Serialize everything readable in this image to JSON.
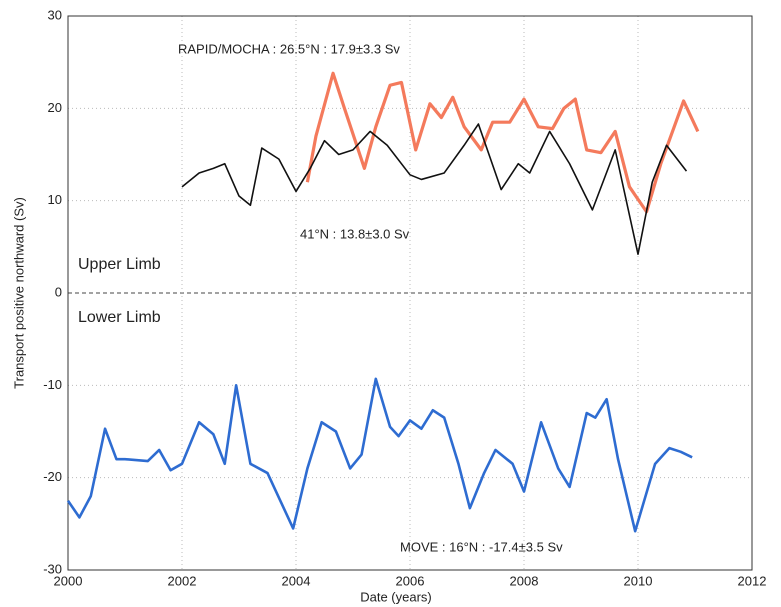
{
  "chart_data": {
    "type": "line",
    "x_label": "Date (years)",
    "y_label": "Transport positive northward (Sv)",
    "xlim": [
      2000,
      2012
    ],
    "xticks": [
      2000,
      2002,
      2004,
      2006,
      2008,
      2010,
      2012
    ],
    "ylim": [
      -30,
      30
    ],
    "yticks": [
      -30,
      -20,
      -10,
      0,
      10,
      20,
      30
    ],
    "grid": true,
    "annotations": [
      "Upper Limb",
      "Lower Limb"
    ],
    "series": [
      {
        "name": "RAPID/MOCHA : 26.5°N : 17.9±3.3 Sv",
        "color": "#f47a5c",
        "x": [
          2004.2,
          2004.35,
          2004.65,
          2004.85,
          2005.2,
          2005.4,
          2005.65,
          2005.85,
          2006.1,
          2006.35,
          2006.55,
          2006.75,
          2006.95,
          2007.25,
          2007.45,
          2007.75,
          2008.0,
          2008.25,
          2008.5,
          2008.7,
          2008.9,
          2009.1,
          2009.35,
          2009.6,
          2009.85,
          2010.15,
          2010.4,
          2010.8,
          2011.05
        ],
        "values": [
          12,
          17,
          23.8,
          20,
          13.5,
          18,
          22.5,
          22.8,
          15.5,
          20.5,
          19,
          21.2,
          18,
          15.5,
          18.5,
          18.5,
          21,
          18,
          17.8,
          20,
          21,
          15.5,
          15.2,
          17.5,
          11.5,
          8.8,
          14,
          20.8,
          17.5
        ]
      },
      {
        "name": "41°N : 13.8±3.0 Sv",
        "color": "#111111",
        "x": [
          2002.0,
          2002.3,
          2002.55,
          2002.75,
          2003.0,
          2003.2,
          2003.4,
          2003.7,
          2004.0,
          2004.25,
          2004.5,
          2004.75,
          2005.0,
          2005.3,
          2005.6,
          2006.0,
          2006.2,
          2006.6,
          2006.95,
          2007.2,
          2007.6,
          2007.9,
          2008.1,
          2008.45,
          2008.8,
          2009.2,
          2009.6,
          2010.0,
          2010.25,
          2010.5,
          2010.85
        ],
        "values": [
          11.5,
          13,
          13.5,
          14,
          10.5,
          9.5,
          15.7,
          14.5,
          11,
          13.5,
          16.5,
          15,
          15.5,
          17.5,
          16,
          12.8,
          12.3,
          13,
          16,
          18.3,
          11.2,
          14,
          13,
          17.5,
          14,
          9,
          15.5,
          4.2,
          12,
          16,
          13.2
        ]
      },
      {
        "name": "MOVE : 16°N : -17.4±3.5 Sv",
        "color": "#2e6cd1",
        "x": [
          2000.0,
          2000.2,
          2000.4,
          2000.65,
          2000.85,
          2001.0,
          2001.4,
          2001.6,
          2001.8,
          2002.0,
          2002.3,
          2002.55,
          2002.75,
          2002.95,
          2003.2,
          2003.5,
          2003.95,
          2004.2,
          2004.45,
          2004.7,
          2004.95,
          2005.15,
          2005.4,
          2005.65,
          2005.8,
          2006.0,
          2006.2,
          2006.4,
          2006.6,
          2006.85,
          2007.05,
          2007.3,
          2007.5,
          2007.8,
          2008.0,
          2008.3,
          2008.6,
          2008.8,
          2009.1,
          2009.25,
          2009.45,
          2009.65,
          2009.95,
          2010.3,
          2010.55,
          2010.75,
          2010.95
        ],
        "values": [
          -22.5,
          -24.3,
          -22,
          -14.7,
          -18,
          -18,
          -18.2,
          -17,
          -19.2,
          -18.5,
          -14,
          -15.3,
          -18.5,
          -10,
          -18.5,
          -19.5,
          -25.5,
          -19,
          -14,
          -15,
          -19,
          -17.5,
          -9.3,
          -14.5,
          -15.5,
          -13.8,
          -14.7,
          -12.7,
          -13.5,
          -18.5,
          -23.3,
          -19.5,
          -17,
          -18.5,
          -21.5,
          -14,
          -19,
          -21,
          -13,
          -13.5,
          -11.5,
          -18,
          -25.8,
          -18.5,
          -16.8,
          -17.2,
          -17.8
        ]
      }
    ]
  }
}
